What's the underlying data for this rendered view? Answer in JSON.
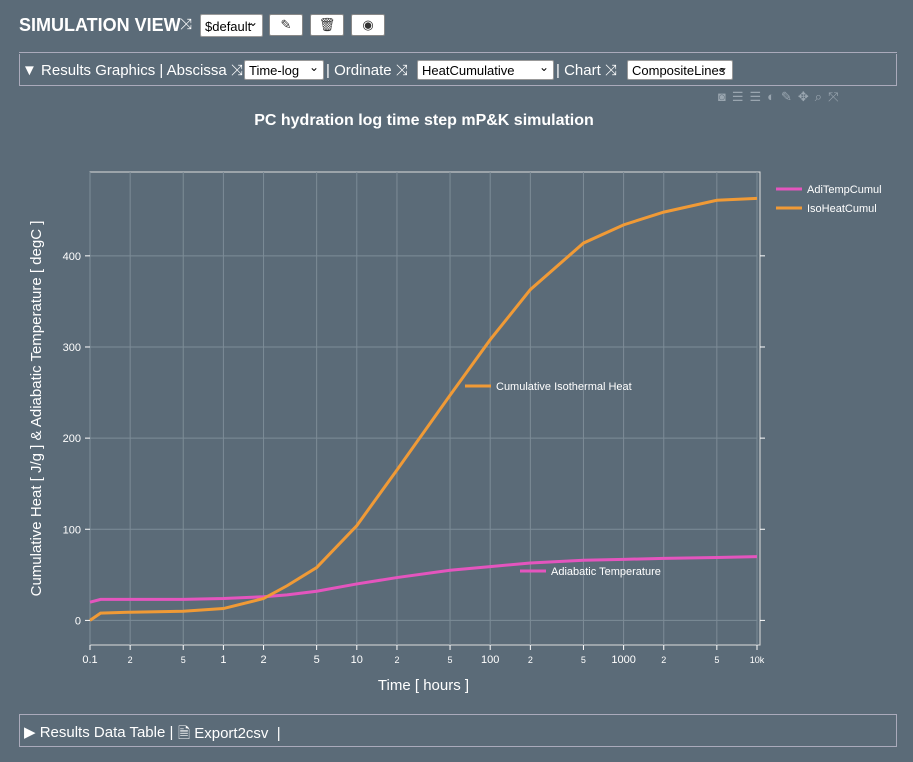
{
  "header": {
    "title": "SIMULATION VIEW",
    "scenario": "$default"
  },
  "toolbar": {
    "section": "Results Graphics",
    "abscissa_label": "Abscissa",
    "abscissa": "Time-log",
    "ordinate_label": "Ordinate",
    "ordinate": "HeatCumulative",
    "chart_label": "Chart",
    "chart": "CompositeLines"
  },
  "footer": {
    "section": "Results Data Table",
    "export": "Export2csv"
  },
  "chart_data": {
    "type": "line",
    "title": "PC hydration log time step mP&K simulation",
    "x_label": "Time [ hours ]",
    "y_label": "Cumulative Heat [ J/g ] & Adiabatic Temperature [ degC ]",
    "x_scale": "log",
    "grid": true,
    "legend": "right",
    "x": [
      0.1,
      0.12,
      0.2,
      0.5,
      1,
      2,
      3,
      5,
      10,
      20,
      50,
      100,
      200,
      500,
      1000,
      2000,
      5000,
      10000
    ],
    "series": [
      {
        "name": "AdiTempCumul",
        "color": "#e455be",
        "values": [
          20,
          23,
          23,
          23,
          24,
          26,
          28,
          32,
          40,
          47,
          55,
          59,
          63,
          66,
          67,
          68,
          69,
          70
        ]
      },
      {
        "name": "IsoHeatCumul",
        "color": "#f09a36",
        "values": [
          0,
          8,
          9,
          10,
          13,
          24,
          38,
          58,
          104,
          165,
          247,
          308,
          363,
          414,
          434,
          448,
          461,
          463
        ]
      }
    ],
    "annotations": [
      "Cumulative Isothermal Heat",
      "Adiabatic Temperature"
    ],
    "xlim": [
      0.1,
      10000
    ],
    "xticks": [
      0.1,
      {
        "value": 0.2,
        "label": "2"
      },
      {
        "value": 0.5,
        "label": "5"
      },
      1,
      2,
      5,
      10,
      {
        "value": 20,
        "label": "2"
      },
      {
        "value": 50,
        "label": "5"
      },
      100,
      {
        "value": 200,
        "label": "2"
      },
      {
        "value": 500,
        "label": "5"
      },
      1000,
      {
        "value": 2000,
        "label": "2"
      },
      {
        "value": 5000,
        "label": "5"
      },
      {
        "value": 10000,
        "label": "10k"
      }
    ],
    "ylim": [
      -27,
      492
    ],
    "yticks": [
      0,
      100,
      200,
      300,
      400
    ]
  }
}
